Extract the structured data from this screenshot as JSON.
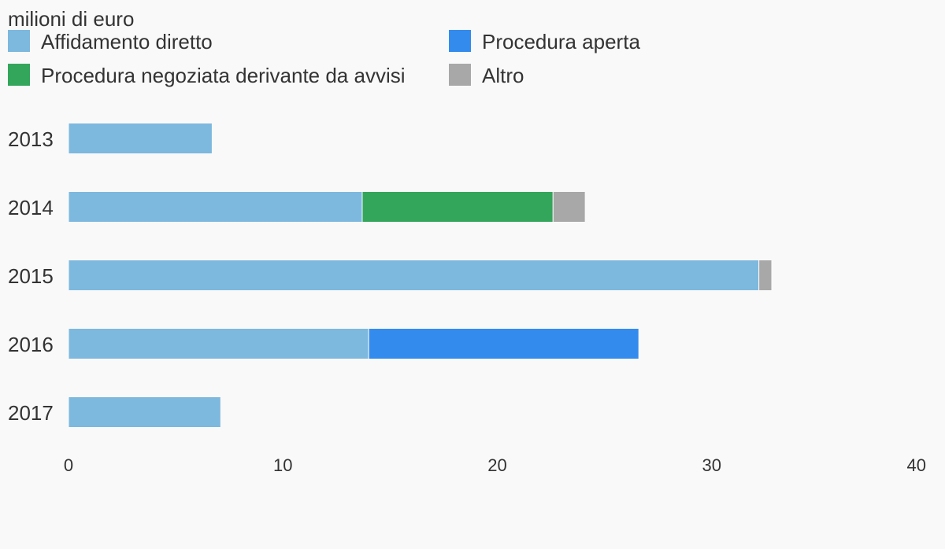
{
  "chart_data": {
    "type": "bar",
    "orientation": "horizontal",
    "stacked": true,
    "unit_label": "milioni di euro",
    "categories": [
      "2013",
      "2014",
      "2015",
      "2016",
      "2017"
    ],
    "series": [
      {
        "name": "Affidamento diretto",
        "color": "#7db8de",
        "values": [
          6.7,
          13.7,
          32.2,
          14.0,
          7.1
        ]
      },
      {
        "name": "Procedura aperta",
        "color": "#338bed",
        "values": [
          0,
          0,
          0,
          12.6,
          0
        ]
      },
      {
        "name": "Procedura negoziata derivante da avvisi",
        "color": "#33a65c",
        "values": [
          0,
          8.9,
          0,
          0,
          0
        ]
      },
      {
        "name": "Altro",
        "color": "#a8a8a8",
        "values": [
          0,
          1.5,
          0.6,
          0,
          0
        ]
      }
    ],
    "xlim": [
      0,
      40
    ],
    "x_ticks": [
      0,
      10,
      20,
      30,
      40
    ],
    "legend_position": "top",
    "grid": false
  }
}
